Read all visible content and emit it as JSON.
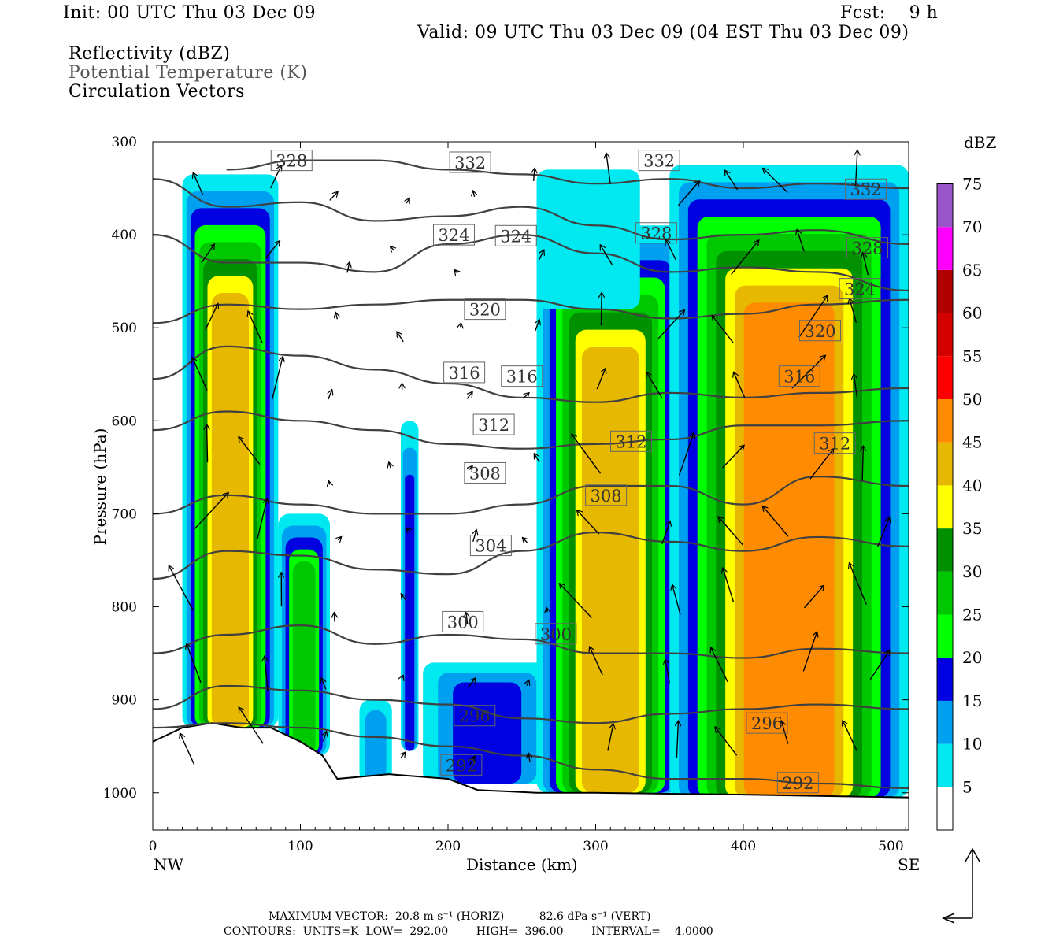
{
  "header": {
    "init": "Init: 00 UTC Thu 03 Dec 09",
    "fcst": "Fcst:    9 h",
    "valid": "Valid: 09 UTC Thu 03 Dec 09 (04 EST Thu 03 Dec 09)",
    "fields": [
      "Reflectivity (dBZ)",
      "Potential Temperature (K)",
      "Circulation Vectors"
    ]
  },
  "footer": {
    "max_vector": "MAXIMUM VECTOR:  20.8 m s⁻¹ (HORIZ)          82.6 dPa s⁻¹ (VERT)",
    "contours": "CONTOURS:  UNITS=K  LOW=  292.00        HIGH=  396.00        INTERVAL=    4.0000"
  },
  "colors": {
    "contour": "#404040",
    "terrain": "#000000"
  },
  "chart_data": {
    "type": "heatmap",
    "xlabel": "Distance (km)",
    "ylabel": "Pressure (hPa)",
    "xlim": [
      0,
      512
    ],
    "ylim": [
      1040,
      300
    ],
    "x_ticks": [
      0,
      100,
      200,
      300,
      400,
      500
    ],
    "y_ticks": [
      300,
      400,
      500,
      600,
      700,
      800,
      900,
      1000
    ],
    "x_end_labels": {
      "left": "NW",
      "right": "SE"
    },
    "colorbar": {
      "label": "dBZ",
      "ticks": [
        5,
        10,
        15,
        20,
        25,
        30,
        35,
        40,
        45,
        50,
        55,
        60,
        65,
        70,
        75
      ],
      "colors": [
        "#ffffff",
        "#00e8f0",
        "#00a0f0",
        "#0000e0",
        "#00ff00",
        "#00c800",
        "#009000",
        "#ffff00",
        "#e6b800",
        "#ff8c00",
        "#ff0000",
        "#d40000",
        "#b00000",
        "#ff00ff",
        "#9955c9"
      ]
    },
    "reflectivity_cells": [
      {
        "x": [
          20,
          85
        ],
        "top": 335,
        "bottom": 930,
        "max_dbz": 40
      },
      {
        "x": [
          85,
          120
        ],
        "top": 700,
        "bottom": 960,
        "max_dbz": 25
      },
      {
        "x": [
          140,
          162
        ],
        "top": 900,
        "bottom": 990,
        "max_dbz": 10
      },
      {
        "x": [
          168,
          180
        ],
        "top": 600,
        "bottom": 955,
        "max_dbz": 15
      },
      {
        "x": [
          183,
          270
        ],
        "top": 860,
        "bottom": 990,
        "max_dbz": 15
      },
      {
        "x": [
          260,
          360
        ],
        "top": 390,
        "bottom": 1000,
        "max_dbz": 40
      },
      {
        "x": [
          260,
          330
        ],
        "top": 330,
        "bottom": 480,
        "max_dbz": 5
      },
      {
        "x": [
          350,
          512
        ],
        "top": 325,
        "bottom": 1005,
        "max_dbz": 45
      }
    ],
    "theta_contours": [
      {
        "label": "292",
        "x": [
          0,
          50,
          100,
          150,
          200,
          250,
          300,
          350,
          400,
          450,
          512
        ],
        "p": [
          930,
          925,
          930,
          940,
          950,
          960,
          975,
          985,
          985,
          990,
          995
        ]
      },
      {
        "label": "296",
        "x": [
          0,
          50,
          100,
          150,
          200,
          250,
          300,
          350,
          400,
          450,
          512
        ],
        "p": [
          910,
          885,
          890,
          900,
          905,
          920,
          925,
          915,
          910,
          905,
          910
        ]
      },
      {
        "label": "300",
        "x": [
          0,
          50,
          100,
          150,
          200,
          250,
          300,
          350,
          400,
          450,
          512
        ],
        "p": [
          850,
          830,
          820,
          840,
          830,
          835,
          850,
          850,
          855,
          845,
          850
        ]
      },
      {
        "label": "304",
        "x": [
          0,
          50,
          100,
          150,
          200,
          250,
          300,
          350,
          400,
          450,
          512
        ],
        "p": [
          770,
          740,
          745,
          760,
          765,
          740,
          720,
          730,
          740,
          725,
          735
        ]
      },
      {
        "label": "308",
        "x": [
          0,
          50,
          100,
          150,
          200,
          250,
          300,
          350,
          400,
          450,
          512
        ],
        "p": [
          700,
          680,
          690,
          700,
          700,
          690,
          670,
          670,
          690,
          660,
          670
        ]
      },
      {
        "label": "312",
        "x": [
          0,
          50,
          100,
          150,
          200,
          250,
          300,
          350,
          400,
          450,
          512
        ],
        "p": [
          610,
          590,
          600,
          610,
          625,
          630,
          625,
          620,
          605,
          605,
          600
        ]
      },
      {
        "label": "316",
        "x": [
          0,
          50,
          100,
          150,
          200,
          250,
          300,
          350,
          400,
          450,
          512
        ],
        "p": [
          555,
          520,
          530,
          545,
          560,
          575,
          580,
          570,
          575,
          570,
          565
        ]
      },
      {
        "label": "320",
        "x": [
          0,
          50,
          100,
          150,
          200,
          250,
          300,
          350,
          400,
          450,
          512
        ],
        "p": [
          495,
          475,
          480,
          475,
          470,
          470,
          480,
          490,
          485,
          475,
          470
        ]
      },
      {
        "label": "324",
        "x": [
          0,
          50,
          100,
          150,
          200,
          250,
          300,
          350,
          400,
          450,
          512
        ],
        "p": [
          400,
          430,
          430,
          440,
          410,
          400,
          420,
          440,
          435,
          440,
          460
        ]
      },
      {
        "label": "328",
        "x": [
          0,
          50,
          100,
          150,
          200,
          250,
          300,
          350,
          400,
          450,
          512
        ],
        "p": [
          340,
          370,
          365,
          385,
          380,
          370,
          390,
          405,
          400,
          395,
          410
        ]
      },
      {
        "label": "332",
        "x": [
          0,
          50,
          100,
          150,
          200,
          250,
          300,
          350,
          400,
          450,
          512
        ],
        "p": [
          null,
          330,
          320,
          320,
          330,
          335,
          345,
          340,
          350,
          345,
          350
        ]
      }
    ],
    "contour_labels": [
      {
        "text": "328",
        "x": 94,
        "p": 320
      },
      {
        "text": "332",
        "x": 215,
        "p": 322
      },
      {
        "text": "332",
        "x": 343,
        "p": 320
      },
      {
        "text": "332",
        "x": 483,
        "p": 351
      },
      {
        "text": "324",
        "x": 204,
        "p": 400
      },
      {
        "text": "324",
        "x": 246,
        "p": 401
      },
      {
        "text": "328",
        "x": 341,
        "p": 398
      },
      {
        "text": "328",
        "x": 484,
        "p": 414
      },
      {
        "text": "320",
        "x": 225,
        "p": 480
      },
      {
        "text": "324",
        "x": 479,
        "p": 458
      },
      {
        "text": "320",
        "x": 452,
        "p": 503
      },
      {
        "text": "316",
        "x": 211,
        "p": 548
      },
      {
        "text": "316",
        "x": 250,
        "p": 552
      },
      {
        "text": "316",
        "x": 438,
        "p": 552
      },
      {
        "text": "312",
        "x": 231,
        "p": 604
      },
      {
        "text": "312",
        "x": 324,
        "p": 622
      },
      {
        "text": "312",
        "x": 462,
        "p": 624
      },
      {
        "text": "308",
        "x": 225,
        "p": 656
      },
      {
        "text": "308",
        "x": 307,
        "p": 680
      },
      {
        "text": "304",
        "x": 229,
        "p": 734
      },
      {
        "text": "300",
        "x": 210,
        "p": 816
      },
      {
        "text": "300",
        "x": 273,
        "p": 829
      },
      {
        "text": "296",
        "x": 218,
        "p": 917
      },
      {
        "text": "296",
        "x": 416,
        "p": 925
      },
      {
        "text": "292",
        "x": 209,
        "p": 970
      },
      {
        "text": "292",
        "x": 437,
        "p": 989
      }
    ],
    "terrain_surface": {
      "x": [
        0,
        20,
        40,
        60,
        80,
        100,
        115,
        125,
        160,
        200,
        220,
        260,
        300,
        400,
        512
      ],
      "p": [
        945,
        930,
        925,
        930,
        930,
        945,
        960,
        985,
        980,
        985,
        997,
        1000,
        1000,
        1002,
        1005
      ]
    },
    "vectors_note": "Circulation vectors"
  }
}
